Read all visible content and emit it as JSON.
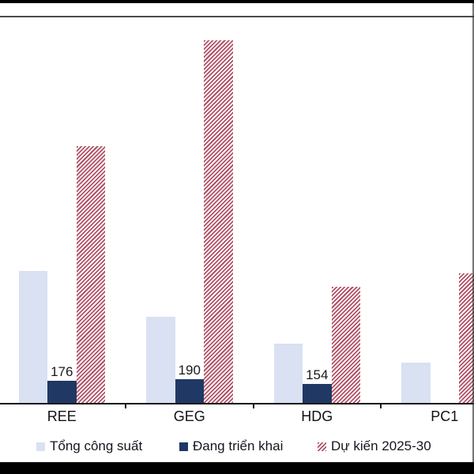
{
  "chart_data": {
    "type": "bar",
    "title": "",
    "categories": [
      "REE",
      "GEG",
      "HDG",
      "PC1"
    ],
    "series": [
      {
        "name": "Tổng công suất",
        "style": "solid",
        "color": "#d9e1f2",
        "values": [
          1060,
          690,
          475,
          325
        ]
      },
      {
        "name": "Đang triển khai",
        "style": "solid",
        "color": "#1f3864",
        "values": [
          176,
          190,
          154,
          0
        ],
        "value_labels": [
          "176",
          "190",
          "154",
          ""
        ]
      },
      {
        "name": "Dự kiến 2025-30",
        "style": "hatched",
        "color": "#b25166",
        "values": [
          2065,
          2915,
          935,
          1040
        ]
      }
    ],
    "ylim": [
      0,
      3100
    ],
    "grid": false,
    "legend_position": "bottom",
    "axis_note": "y-axis hidden off-frame; chart clipped at left and right edges; printed value labels appear only on the 'Đang triển khai' series; other values estimated from bar heights"
  }
}
